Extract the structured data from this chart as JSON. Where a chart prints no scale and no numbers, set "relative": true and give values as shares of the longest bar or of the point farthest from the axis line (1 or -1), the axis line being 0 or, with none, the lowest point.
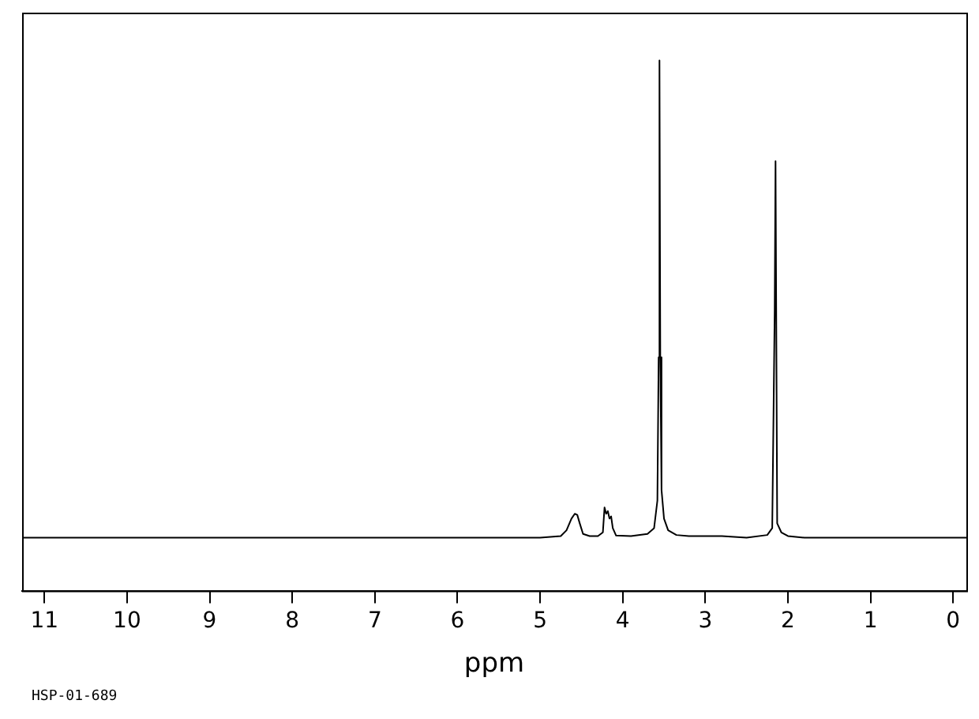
{
  "chart_data": {
    "type": "line",
    "relative": true,
    "xlabel": "ppm",
    "annotations": [
      "HSP-01-689"
    ],
    "xlim": [
      11.27,
      -0.16
    ],
    "xticks": [
      11,
      10,
      9,
      8,
      7,
      6,
      5,
      4,
      3,
      2,
      1,
      0
    ],
    "grid": false,
    "marker": "none",
    "line_style": "solid",
    "series": [
      {
        "color": "#000000",
        "x": [
          11.27,
          5.0,
          4.75,
          4.68,
          4.62,
          4.58,
          4.55,
          4.52,
          4.48,
          4.4,
          4.3,
          4.24,
          4.22,
          4.2,
          4.18,
          4.16,
          4.14,
          4.12,
          4.08,
          3.9,
          3.7,
          3.62,
          3.58,
          3.565,
          3.555,
          3.545,
          3.53,
          3.5,
          3.45,
          3.35,
          3.2,
          2.8,
          2.5,
          2.25,
          2.19,
          2.16,
          2.15,
          2.13,
          2.08,
          2.0,
          1.8,
          -0.16
        ],
        "values": [
          0.1,
          0.1,
          0.103,
          0.114,
          0.136,
          0.145,
          0.143,
          0.127,
          0.107,
          0.103,
          0.103,
          0.11,
          0.157,
          0.145,
          0.15,
          0.136,
          0.14,
          0.118,
          0.104,
          0.103,
          0.107,
          0.118,
          0.17,
          0.44,
          1.0,
          0.44,
          0.19,
          0.136,
          0.114,
          0.105,
          0.103,
          0.103,
          0.1,
          0.105,
          0.118,
          0.53,
          0.81,
          0.127,
          0.11,
          0.103,
          0.1,
          0.1
        ]
      }
    ]
  }
}
